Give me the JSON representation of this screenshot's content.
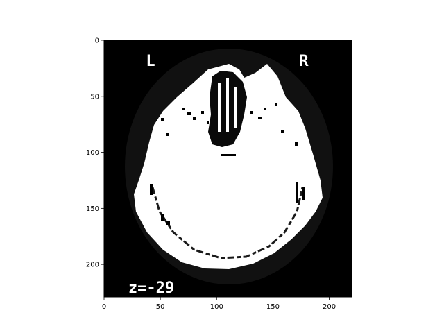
{
  "chart_data": {
    "type": "heatmap",
    "colormap": "gray",
    "image_extent": {
      "x": [
        0,
        220
      ],
      "y": [
        0,
        229
      ]
    },
    "xlim": [
      0,
      220
    ],
    "ylim": [
      229,
      0
    ],
    "x_ticks": [
      0,
      50,
      100,
      150,
      200
    ],
    "y_ticks": [
      0,
      50,
      100,
      150,
      200
    ],
    "x_tick_labels": [
      "0",
      "50",
      "100",
      "150",
      "200"
    ],
    "y_tick_labels": [
      "0",
      "50",
      "100",
      "150",
      "200"
    ],
    "annotations": [
      {
        "text": "L",
        "x": 40,
        "y": 18
      },
      {
        "text": "R",
        "x": 178,
        "y": 18
      },
      {
        "text": "z=-29",
        "x": 42,
        "y": 220
      }
    ],
    "grid": false,
    "legend": "none"
  }
}
